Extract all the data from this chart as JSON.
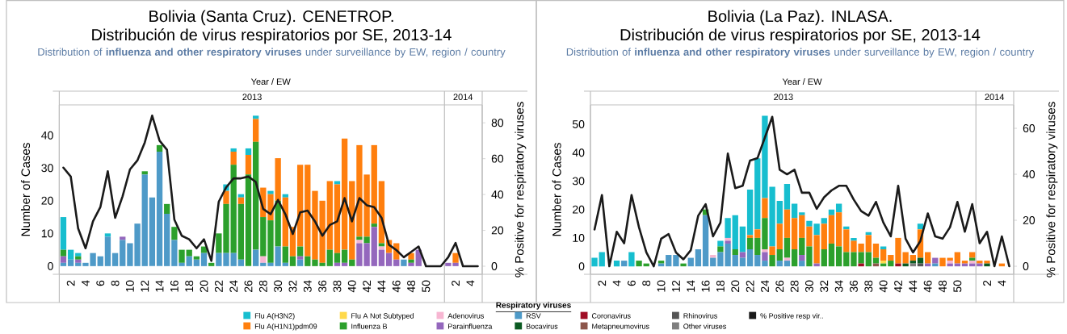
{
  "chart_data": [
    {
      "type": "bar",
      "stacked": true,
      "title": "Bolivia (Santa Cruz). CENETROP.",
      "subtitle": "Distribución de virus respiratorios por SE, 2013-14",
      "annotations": [
        "Distribution of **influenza and other respiratory viruses** under surveillance by EW, region / country",
        "2013",
        "2014"
      ],
      "xlabel": "Year  /  EW",
      "ylabel": "Number of Cases",
      "y2label": "% Positive for respiratory viruses",
      "categories": [
        null,
        "2",
        null,
        "4",
        null,
        "6",
        null,
        "8",
        null,
        "10",
        null,
        "12",
        null,
        "14",
        null,
        "16",
        null,
        "18",
        null,
        "20",
        null,
        "22",
        null,
        "24",
        null,
        "26",
        null,
        "28",
        null,
        "30",
        null,
        "32",
        null,
        "34",
        null,
        "36",
        null,
        "38",
        null,
        "40",
        null,
        "42",
        null,
        "44",
        null,
        "46",
        null,
        "48",
        null,
        "50",
        null,
        null,
        null,
        "2",
        null,
        "4",
        null
      ],
      "ylim": [
        -2.5,
        49.3
      ],
      "yticks": [
        0,
        10,
        20,
        30,
        40
      ],
      "y2lim": [
        -4.5,
        90
      ],
      "y2ticks": [
        0,
        20,
        40,
        60,
        80
      ],
      "series": [
        {
          "color": "#4e9ac8",
          "values": [
            1,
            2,
            1,
            1,
            4,
            3,
            9,
            4,
            8,
            7,
            13,
            28,
            21,
            35,
            16,
            8,
            1,
            3,
            2,
            4,
            null,
            4,
            4,
            4,
            2,
            null,
            5,
            1,
            1,
            6,
            1,
            null,
            2,
            null,
            null,
            null,
            null,
            null,
            null,
            null,
            null,
            null,
            null,
            null,
            null,
            null,
            2,
            null,
            null,
            null,
            null,
            null,
            null,
            null,
            null,
            null,
            null
          ]
        },
        {
          "color": "#9467bd",
          "values": [
            2,
            null,
            1,
            null,
            null,
            null,
            null,
            null,
            1,
            null,
            null,
            null,
            null,
            null,
            null,
            null,
            null,
            null,
            null,
            null,
            null,
            null,
            null,
            null,
            null,
            null,
            null,
            null,
            null,
            null,
            null,
            null,
            1,
            null,
            null,
            null,
            null,
            1,
            1,
            null,
            7,
            7,
            12,
            5,
            4,
            2,
            null,
            1,
            5,
            null,
            null,
            null,
            1,
            1,
            null,
            null,
            null
          ]
        },
        {
          "color": "#f7b6d2",
          "values": [
            null,
            null,
            null,
            null,
            null,
            null,
            null,
            null,
            null,
            null,
            null,
            null,
            null,
            null,
            null,
            null,
            null,
            null,
            null,
            null,
            null,
            null,
            null,
            null,
            null,
            null,
            null,
            2,
            null,
            null,
            null,
            null,
            null,
            null,
            null,
            null,
            null,
            null,
            null,
            null,
            1,
            null,
            null,
            1,
            null,
            null,
            null,
            null,
            null,
            null,
            null,
            null,
            null,
            null,
            null,
            null,
            null
          ]
        },
        {
          "color": "#2ca02c",
          "values": [
            2,
            null,
            1,
            null,
            null,
            null,
            null,
            null,
            null,
            null,
            null,
            1,
            null,
            2,
            3,
            4,
            4,
            2,
            1,
            2,
            1,
            6,
            15,
            27,
            17,
            28,
            33,
            12,
            13,
            14,
            5,
            3,
            3,
            3,
            2,
            1,
            5,
            3,
            4,
            2,
            1,
            2,
            1,
            1,
            null,
            null,
            null,
            1,
            null,
            null,
            null,
            null,
            null,
            null,
            null,
            null,
            null
          ]
        },
        {
          "color": "#ff7f0e",
          "values": [
            null,
            null,
            null,
            null,
            null,
            null,
            null,
            null,
            null,
            null,
            null,
            null,
            null,
            null,
            null,
            null,
            null,
            null,
            null,
            null,
            null,
            null,
            4,
            4,
            2,
            6,
            7,
            9,
            8,
            13,
            15,
            9,
            25,
            28,
            21,
            19,
            21,
            21,
            34,
            24,
            28,
            19,
            24,
            19,
            4,
            5,
            null,
            2,
            null,
            null,
            null,
            null,
            null,
            3,
            null,
            null,
            null
          ]
        },
        {
          "color": "#17becf",
          "values": [
            10,
            3,
            1,
            null,
            null,
            null,
            1,
            null,
            null,
            null,
            null,
            null,
            null,
            null,
            null,
            null,
            null,
            null,
            null,
            null,
            null,
            null,
            2,
            1,
            1,
            2,
            1,
            null,
            1,
            null,
            1,
            null,
            null,
            null,
            null,
            null,
            null,
            1,
            null,
            null,
            null,
            null,
            null,
            null,
            null,
            null,
            null,
            null,
            null,
            null,
            null,
            null,
            null,
            null,
            null,
            null,
            null
          ]
        },
        {
          "type": "line",
          "axis": "y2",
          "color": "#1a1a1a",
          "values": [
            55,
            50,
            21,
            10,
            25,
            33,
            53,
            27,
            39,
            54,
            59,
            69,
            84,
            70,
            65,
            26,
            17,
            15,
            10,
            15,
            3,
            36,
            44,
            49,
            49,
            50,
            47,
            32,
            29,
            37,
            29,
            18,
            30,
            31,
            25,
            17,
            23,
            25,
            38,
            25,
            38,
            34,
            33,
            27,
            12,
            9,
            5,
            8,
            11,
            0,
            0,
            0,
            5,
            13,
            0,
            0,
            0
          ]
        }
      ]
    },
    {
      "type": "bar",
      "stacked": true,
      "title": "Bolivia (La Paz). INLASA.",
      "subtitle": "Distribución de virus respiratorios por SE, 2013-14",
      "annotations": [
        "Distribution of **influenza and other respiratory viruses** under surveillance by EW, region / country",
        "2013",
        "2014"
      ],
      "xlabel": "Year  /  EW",
      "ylabel": "Number of Cases",
      "y2label": "% Positive for respiratory viruses",
      "categories": [
        null,
        "2",
        null,
        "4",
        null,
        "6",
        null,
        "8",
        null,
        "10",
        null,
        "12",
        null,
        "14",
        null,
        "16",
        null,
        "18",
        null,
        "20",
        null,
        "22",
        null,
        "24",
        null,
        "26",
        null,
        "28",
        null,
        "30",
        null,
        "32",
        null,
        "34",
        null,
        "36",
        null,
        "38",
        null,
        "40",
        null,
        "42",
        null,
        "44",
        null,
        "46",
        null,
        "48",
        null,
        "50",
        null,
        null,
        null,
        "2",
        null,
        "4",
        null
      ],
      "ylim": [
        -2.8,
        56.8
      ],
      "yticks": [
        0,
        10,
        20,
        30,
        40,
        50
      ],
      "y2lim": [
        -3.5,
        70.2
      ],
      "y2ticks": [
        0,
        20,
        40,
        60
      ],
      "legend": "bottom",
      "legend_title": "Respiratory viruses",
      "series": [
        {
          "name": "Other viruses",
          "color": "#7f7f7f",
          "values": [
            null,
            null,
            null,
            null,
            null,
            null,
            null,
            null,
            null,
            null,
            null,
            null,
            null,
            null,
            null,
            null,
            null,
            null,
            null,
            null,
            null,
            null,
            null,
            null,
            null,
            null,
            null,
            null,
            null,
            null,
            null,
            null,
            null,
            null,
            null,
            null,
            null,
            null,
            null,
            null,
            null,
            null,
            null,
            1,
            null,
            null,
            null,
            null,
            null,
            null,
            null,
            null,
            null,
            null,
            null,
            null,
            null
          ]
        },
        {
          "name": "Rhinovirus",
          "color": "#555555",
          "values": [
            null,
            null,
            null,
            null,
            null,
            null,
            null,
            null,
            null,
            null,
            null,
            null,
            null,
            null,
            null,
            null,
            null,
            null,
            null,
            null,
            null,
            null,
            null,
            null,
            null,
            null,
            null,
            null,
            null,
            null,
            null,
            null,
            null,
            null,
            null,
            null,
            null,
            null,
            null,
            null,
            null,
            null,
            null,
            null,
            1,
            null,
            null,
            null,
            null,
            null,
            null,
            null,
            null,
            null,
            null,
            null,
            null
          ]
        },
        {
          "name": "Metapneumovirus",
          "color": "#8c564b",
          "values": [
            null,
            null,
            null,
            null,
            null,
            null,
            null,
            null,
            null,
            null,
            null,
            null,
            null,
            null,
            null,
            null,
            null,
            null,
            null,
            null,
            null,
            null,
            null,
            null,
            null,
            null,
            null,
            null,
            null,
            null,
            null,
            null,
            null,
            null,
            null,
            null,
            null,
            null,
            1,
            null,
            null,
            null,
            null,
            null,
            null,
            null,
            null,
            null,
            null,
            null,
            null,
            null,
            null,
            null,
            null,
            null,
            null
          ]
        },
        {
          "name": "Coronavirus",
          "color": "#a00d25",
          "values": [
            null,
            null,
            null,
            null,
            null,
            null,
            null,
            null,
            null,
            null,
            null,
            null,
            null,
            null,
            null,
            null,
            null,
            null,
            null,
            null,
            null,
            null,
            null,
            null,
            null,
            null,
            null,
            null,
            null,
            null,
            null,
            null,
            null,
            null,
            null,
            null,
            1,
            null,
            null,
            null,
            null,
            1,
            null,
            null,
            null,
            null,
            null,
            null,
            null,
            null,
            null,
            null,
            null,
            null,
            null,
            null,
            null
          ]
        },
        {
          "name": "Bocavirus",
          "color": "#0b5a22",
          "values": [
            null,
            null,
            null,
            null,
            null,
            null,
            null,
            null,
            null,
            null,
            null,
            null,
            null,
            null,
            null,
            null,
            null,
            null,
            null,
            null,
            null,
            null,
            null,
            null,
            null,
            null,
            null,
            null,
            null,
            null,
            null,
            null,
            null,
            null,
            null,
            null,
            null,
            null,
            null,
            null,
            null,
            null,
            1,
            1,
            2,
            null,
            null,
            null,
            null,
            null,
            null,
            null,
            null,
            1,
            null,
            null,
            null
          ]
        },
        {
          "name": "RSV",
          "color": "#4e9ac8",
          "values": [
            null,
            null,
            null,
            null,
            2,
            null,
            null,
            null,
            null,
            1,
            4,
            4,
            null,
            3,
            6,
            18,
            3,
            5,
            8,
            4,
            3,
            6,
            4,
            2,
            null,
            2,
            2,
            null,
            2,
            null,
            null,
            null,
            null,
            null,
            null,
            null,
            null,
            null,
            null,
            null,
            null,
            null,
            null,
            null,
            null,
            null,
            1,
            null,
            null,
            null,
            null,
            null,
            null,
            null,
            null,
            null,
            null
          ]
        },
        {
          "name": "Parainfluenza",
          "color": "#9467bd",
          "values": [
            null,
            null,
            null,
            null,
            null,
            null,
            null,
            null,
            null,
            null,
            null,
            null,
            null,
            null,
            null,
            null,
            null,
            null,
            1,
            null,
            2,
            null,
            null,
            3,
            null,
            null,
            null,
            null,
            2,
            null,
            1,
            null,
            null,
            null,
            null,
            null,
            null,
            null,
            null,
            null,
            null,
            null,
            null,
            null,
            null,
            1,
            2,
            null,
            1,
            1,
            1,
            1,
            1,
            null,
            null,
            null,
            null
          ]
        },
        {
          "name": "Adenovirus",
          "color": "#f7b6d2",
          "values": [
            null,
            null,
            null,
            null,
            null,
            null,
            null,
            null,
            null,
            null,
            null,
            null,
            null,
            null,
            null,
            null,
            1,
            null,
            1,
            null,
            null,
            null,
            null,
            1,
            null,
            null,
            1,
            null,
            null,
            null,
            null,
            null,
            null,
            null,
            null,
            null,
            null,
            null,
            null,
            null,
            null,
            null,
            null,
            null,
            null,
            null,
            null,
            null,
            1,
            null,
            null,
            1,
            null,
            null,
            null,
            null,
            null
          ]
        },
        {
          "name": "Influenza B",
          "color": "#2ca02c",
          "values": [
            null,
            null,
            null,
            null,
            null,
            null,
            2,
            1,
            null,
            1,
            null,
            null,
            1,
            null,
            null,
            2,
            null,
            2,
            null,
            2,
            null,
            4,
            6,
            11,
            4,
            4,
            7,
            6,
            6,
            7,
            null,
            6,
            8,
            7,
            5,
            5,
            4,
            5,
            2,
            1,
            2,
            null,
            null,
            null,
            null,
            null,
            null,
            null,
            null,
            null,
            null,
            1,
            null,
            null,
            null,
            null,
            null
          ]
        },
        {
          "name": "Flu A Not Subtyped",
          "color": "#ffd94a",
          "values": [
            null,
            null,
            null,
            null,
            null,
            null,
            null,
            null,
            null,
            null,
            null,
            null,
            null,
            null,
            null,
            null,
            null,
            null,
            null,
            null,
            null,
            null,
            null,
            null,
            null,
            null,
            null,
            null,
            null,
            null,
            null,
            null,
            null,
            null,
            null,
            null,
            null,
            null,
            null,
            1,
            null,
            null,
            null,
            null,
            null,
            null,
            null,
            null,
            null,
            null,
            null,
            null,
            null,
            null,
            null,
            null,
            null
          ]
        },
        {
          "name": "Flu A(H1N1)pdm09",
          "color": "#ff7f0e",
          "values": [
            null,
            null,
            null,
            null,
            null,
            null,
            null,
            null,
            null,
            null,
            null,
            null,
            null,
            null,
            null,
            null,
            null,
            null,
            null,
            null,
            null,
            1,
            3,
            7,
            3,
            9,
            10,
            11,
            8,
            7,
            10,
            9,
            10,
            12,
            8,
            4,
            3,
            6,
            5,
            4,
            2,
            9,
            4,
            2,
            10,
            4,
            null,
            3,
            1,
            4,
            1,
            2,
            1,
            1,
            null,
            1,
            null
          ]
        },
        {
          "name": "Flu A(H3N2)",
          "color": "#17becf",
          "values": [
            3,
            5,
            null,
            2,
            null,
            5,
            null,
            null,
            null,
            null,
            null,
            null,
            null,
            null,
            null,
            null,
            null,
            2,
            7,
            12,
            9,
            16,
            25,
            29,
            21,
            8,
            9,
            5,
            1,
            2,
            4,
            2,
            2,
            3,
            1,
            1,
            null,
            1,
            null,
            1,
            null,
            null,
            null,
            null,
            2,
            null,
            null,
            null,
            null,
            null,
            null,
            null,
            null,
            null,
            null,
            null,
            null
          ]
        },
        {
          "name": "% Positive resp vir..",
          "type": "line",
          "axis": "y2",
          "color": "#1a1a1a",
          "values": [
            16,
            31,
            0,
            15,
            10,
            31,
            17,
            6,
            0,
            12,
            14,
            6,
            3,
            7,
            22,
            27,
            13,
            19,
            49,
            34,
            35,
            46,
            47,
            56,
            65,
            42,
            40,
            42,
            32,
            32,
            25,
            30,
            33,
            35,
            35,
            29,
            24,
            22,
            28,
            19,
            13,
            35,
            12,
            6,
            11,
            23,
            13,
            12,
            17,
            28,
            15,
            27,
            10,
            15,
            0,
            13,
            0
          ]
        }
      ]
    }
  ]
}
